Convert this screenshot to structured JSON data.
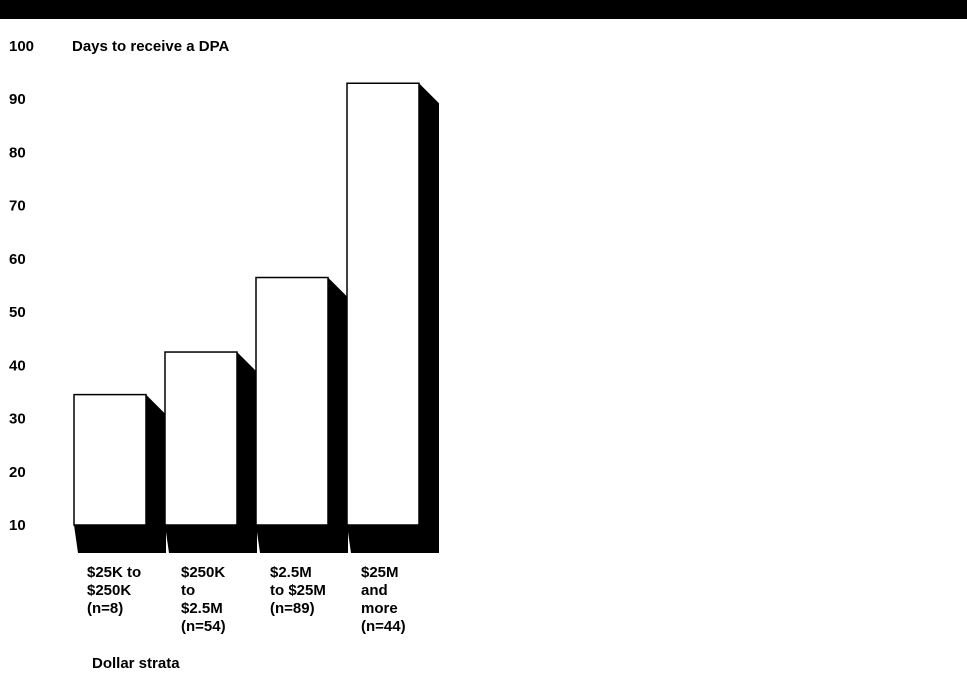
{
  "chart_data": {
    "type": "bar",
    "title": "Days to receive a DPA",
    "xlabel": "Dollar strata",
    "ylabel": "",
    "ylim": [
      10,
      100
    ],
    "yticks": [
      10,
      20,
      30,
      40,
      50,
      60,
      70,
      80,
      90,
      100
    ],
    "grid": false,
    "categories": [
      [
        "$25K to",
        "$250K",
        "(n=8)"
      ],
      [
        "$250K",
        "to",
        "$2.5M",
        "(n=54)"
      ],
      [
        "$2.5M",
        "to $25M",
        "(n=89)"
      ],
      [
        "$25M",
        "and",
        "more",
        "(n=44)"
      ]
    ],
    "values": [
      34.5,
      42.5,
      56.5,
      93
    ],
    "colors": {
      "bar_face": "#ffffff",
      "bar_shadow": "#000000",
      "outline": "#000000"
    }
  }
}
